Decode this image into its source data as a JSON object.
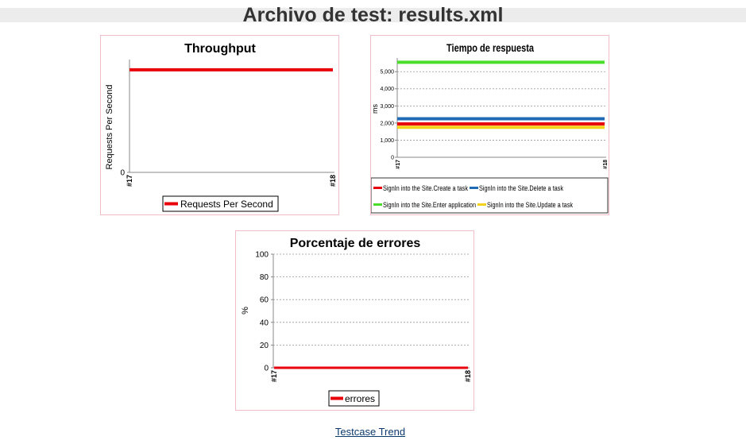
{
  "page": {
    "title": "Archivo de test: results.xml",
    "link_label": "Testcase Trend"
  },
  "chart_data": [
    {
      "type": "line",
      "title": "Throughput",
      "xlabel": "",
      "ylabel": "Requests Per Second",
      "categories": [
        "#17",
        "#18"
      ],
      "y_ticks": [
        "0"
      ],
      "ylim": [
        0,
        1.1
      ],
      "grid": false,
      "legend_position": "bottom",
      "series": [
        {
          "name": "Requests Per Second",
          "values": [
            1,
            1
          ],
          "color": "#e8000b"
        }
      ]
    },
    {
      "type": "line",
      "title": "Tiempo de respuesta",
      "xlabel": "",
      "ylabel": "ms",
      "categories": [
        "#17",
        "#18"
      ],
      "y_ticks": [
        "0",
        "1,000",
        "2,000",
        "3,000",
        "4,000",
        "5,000"
      ],
      "ylim": [
        0,
        5800
      ],
      "grid": true,
      "legend_position": "bottom",
      "series": [
        {
          "name": "SignIn into the Site.Create a task",
          "values": [
            1950,
            1950
          ],
          "color": "#e8000b"
        },
        {
          "name": "SignIn into the Site.Delete a task",
          "values": [
            2250,
            2250
          ],
          "color": "#1f6bb5"
        },
        {
          "name": "SignIn into the Site.Enter application",
          "values": [
            5550,
            5550
          ],
          "color": "#4cdc2c"
        },
        {
          "name": "SignIn into the Site.Update a task",
          "values": [
            1750,
            1750
          ],
          "color": "#f5d21a"
        }
      ]
    },
    {
      "type": "line",
      "title": "Porcentaje de errores",
      "xlabel": "",
      "ylabel": "%",
      "categories": [
        "#17",
        "#18"
      ],
      "y_ticks": [
        "0",
        "20",
        "40",
        "60",
        "80",
        "100"
      ],
      "ylim": [
        0,
        100
      ],
      "grid": true,
      "legend_position": "bottom",
      "series": [
        {
          "name": "errores",
          "values": [
            0,
            0
          ],
          "color": "#e8000b"
        }
      ]
    }
  ]
}
